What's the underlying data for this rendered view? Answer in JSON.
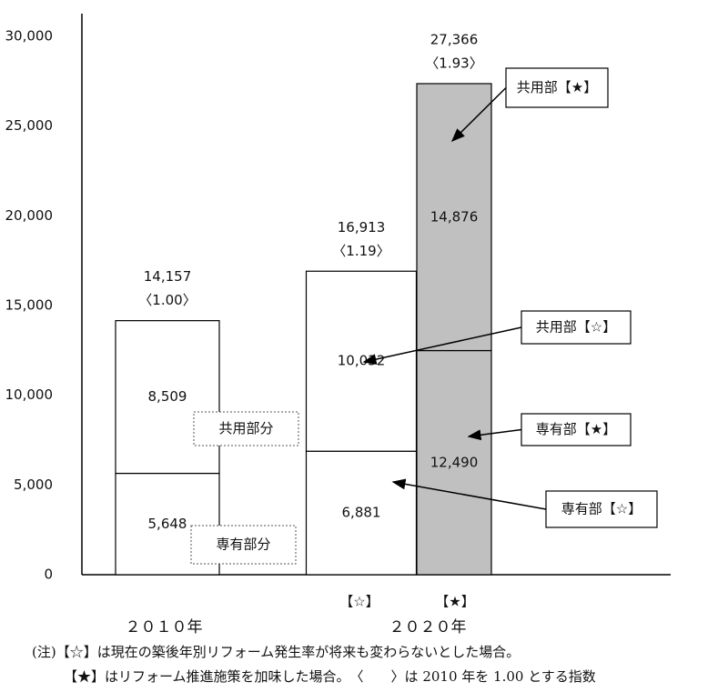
{
  "chart_data": {
    "type": "stacked-bar",
    "categories": [
      "２０１０年",
      "【☆】",
      "【★】"
    ],
    "group_labels": [
      "２０２０年"
    ],
    "series": [
      {
        "name": "専有部分",
        "values": [
          5648,
          6881,
          12490
        ],
        "value_labels": [
          "5,648",
          "6,881",
          "12,490"
        ]
      },
      {
        "name": "共用部分",
        "values": [
          8509,
          10032,
          14876
        ],
        "value_labels": [
          "8,509",
          "10,032",
          "14,876"
        ]
      }
    ],
    "bar_colors": [
      "#ffffff",
      "#ffffff",
      "#c0c0c0"
    ],
    "totals": [
      14157,
      16913,
      27366
    ],
    "total_labels": [
      "14,157",
      "16,913",
      "27,366"
    ],
    "index_labels": [
      "〈1.00〉",
      "〈1.19〉",
      "〈1.93〉"
    ],
    "callouts": [
      "共用部【★】",
      "共用部【☆】",
      "専有部【★】",
      "専有部【☆】"
    ],
    "ylim": [
      0,
      31000
    ],
    "yticks": [
      0,
      {
        "value": 5000,
        "label": "5,000"
      },
      {
        "value": 10000,
        "label": "10,000"
      },
      {
        "value": 15000,
        "label": "15,000"
      },
      {
        "value": 20000,
        "label": "20,000"
      },
      {
        "value": 25000,
        "label": "25,000"
      },
      {
        "value": 30000,
        "label": "30,000"
      }
    ],
    "notes": [
      "(注)【☆】は現在の築後年別リフォーム発生率が将来も変わらないとした場合。",
      "【★】はリフォーム推進施策を加味した場合。　〈　　〉は 2010 年を 1.00 とする指数"
    ]
  }
}
